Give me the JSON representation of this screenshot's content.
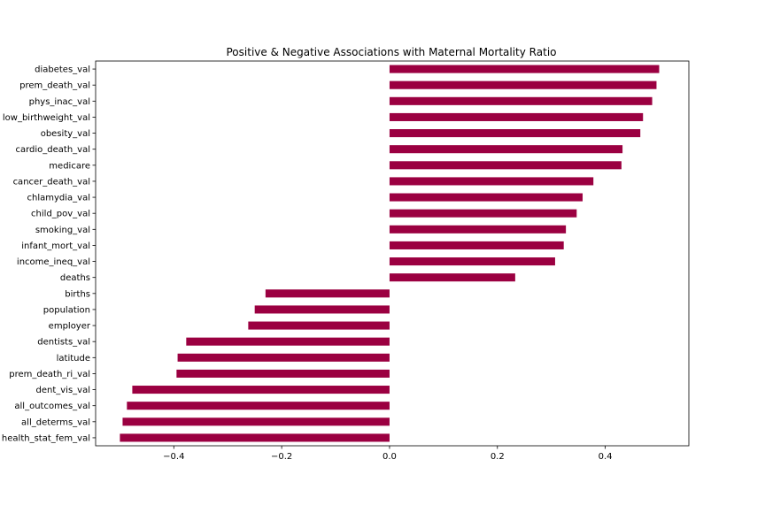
{
  "chart_data": {
    "type": "bar",
    "orientation": "horizontal",
    "title": "Positive & Negative Associations with Maternal Mortality Ratio",
    "xlabel": "",
    "ylabel": "",
    "xlim": [
      -0.545,
      0.555
    ],
    "xticks": [
      -0.4,
      -0.2,
      0.0,
      0.2,
      0.4
    ],
    "xtick_labels": [
      "−0.4",
      "−0.2",
      "0.0",
      "0.2",
      "0.4"
    ],
    "grid": false,
    "bar_color": "#9b0041",
    "categories": [
      "diabetes_val",
      "prem_death_val",
      "phys_inac_val",
      "low_birthweight_val",
      "obesity_val",
      "cardio_death_val",
      "medicare",
      "cancer_death_val",
      "chlamydia_val",
      "child_pov_val",
      "smoking_val",
      "infant_mort_val",
      "income_ineq_val",
      "deaths",
      "births",
      "population",
      "employer",
      "dentists_val",
      "latitude",
      "prem_death_ri_val",
      "dent_vis_val",
      "all_outcomes_val",
      "all_determs_val",
      "health_stat_fem_val"
    ],
    "values": [
      0.5,
      0.495,
      0.487,
      0.47,
      0.465,
      0.432,
      0.43,
      0.378,
      0.358,
      0.347,
      0.327,
      0.323,
      0.307,
      0.233,
      -0.23,
      -0.25,
      -0.262,
      -0.377,
      -0.393,
      -0.395,
      -0.477,
      -0.487,
      -0.495,
      -0.5
    ]
  }
}
